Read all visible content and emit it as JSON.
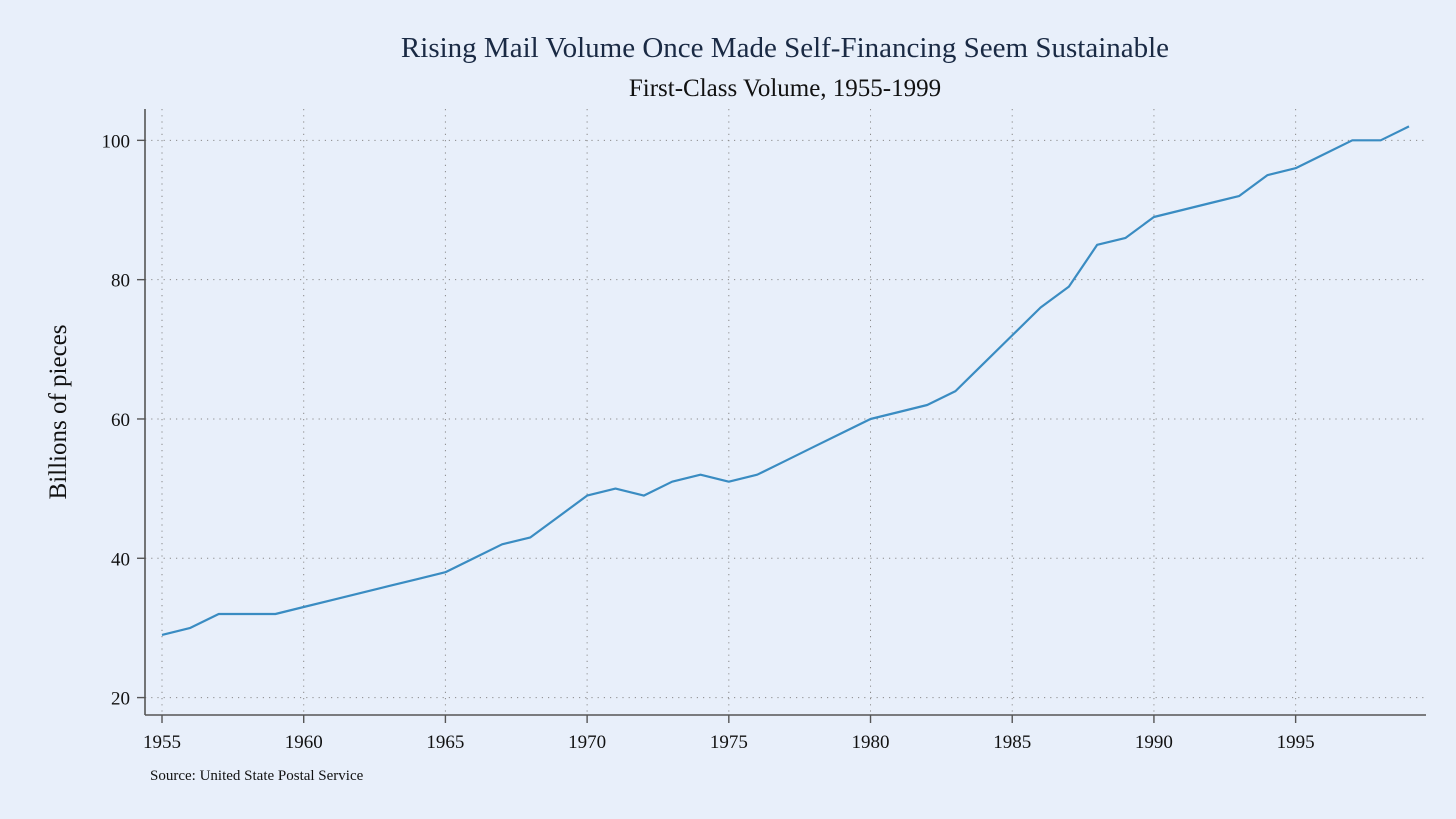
{
  "chart_data": {
    "type": "line",
    "title": "Rising Mail Volume Once Made Self-Financing Seem Sustainable",
    "subtitle": "First-Class Volume, 1955-1999",
    "xlabel": "",
    "ylabel": "Billions of pieces",
    "source": "Source: United State Postal Service",
    "xlim": [
      1954.4,
      1999.6
    ],
    "ylim": [
      17.5,
      104.5
    ],
    "x_ticks": [
      "1955",
      "1960",
      "1965",
      "1970",
      "1975",
      "1980",
      "1985",
      "1990",
      "1995"
    ],
    "y_ticks": [
      "20",
      "40",
      "60",
      "80",
      "100"
    ],
    "grid": true,
    "series": [
      {
        "name": "First-Class Volume",
        "color": "#3a8cc2",
        "x": [
          1955,
          1956,
          1957,
          1958,
          1959,
          1960,
          1961,
          1962,
          1963,
          1964,
          1965,
          1966,
          1967,
          1968,
          1969,
          1970,
          1971,
          1972,
          1973,
          1974,
          1975,
          1976,
          1977,
          1978,
          1979,
          1980,
          1981,
          1982,
          1983,
          1984,
          1985,
          1986,
          1987,
          1988,
          1989,
          1990,
          1991,
          1992,
          1993,
          1994,
          1995,
          1996,
          1997,
          1998,
          1999
        ],
        "values": [
          29,
          30,
          32,
          32,
          32,
          33,
          34,
          35,
          36,
          37,
          38,
          40,
          42,
          43,
          46,
          49,
          50,
          49,
          51,
          52,
          51,
          52,
          54,
          56,
          58,
          60,
          61,
          62,
          64,
          68,
          72,
          76,
          79,
          85,
          86,
          89,
          90,
          91,
          92,
          95,
          96,
          98,
          100,
          100,
          102
        ]
      }
    ]
  }
}
